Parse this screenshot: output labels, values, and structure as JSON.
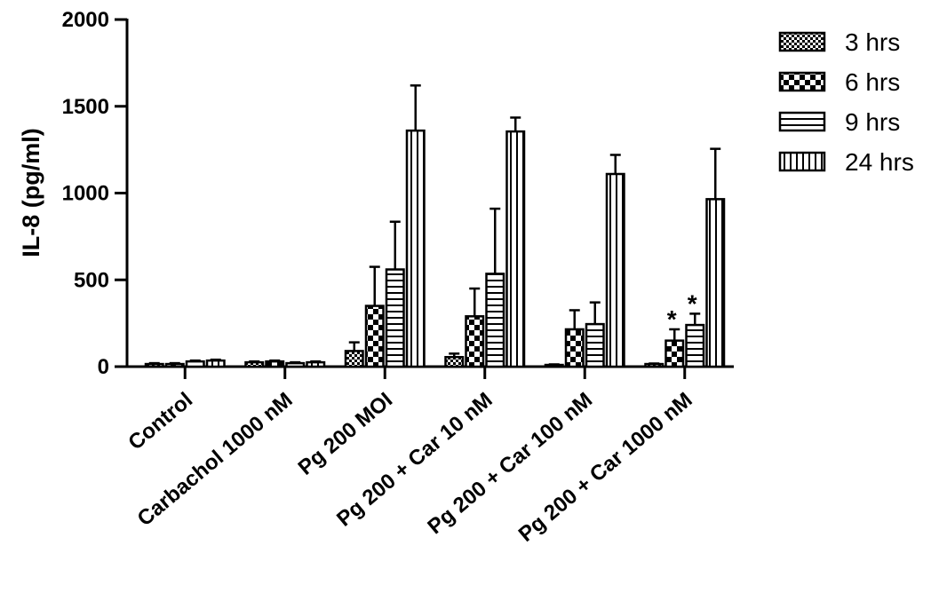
{
  "chart_data": {
    "type": "bar",
    "title": "",
    "xlabel": "",
    "ylabel": "IL-8 (pg/ml)",
    "ylim": [
      0,
      2000
    ],
    "yticks": [
      0,
      500,
      1000,
      1500,
      2000
    ],
    "grid": false,
    "legend_position": "top-right",
    "categories": [
      "Control",
      "Carbachol 1000 nM",
      "Pg 200 MOI",
      "Pg 200 + Car 10 nM",
      "Pg 200 + Car 100 nM",
      "Pg 200 + Car 1000 nM"
    ],
    "series": [
      {
        "name": "3 hrs",
        "pattern": "fine-checker",
        "values": [
          15,
          25,
          90,
          55,
          10,
          15
        ],
        "errors": [
          5,
          5,
          50,
          20,
          3,
          3
        ]
      },
      {
        "name": "6 hrs",
        "pattern": "coarse-checker",
        "values": [
          15,
          30,
          350,
          290,
          215,
          150
        ],
        "errors": [
          5,
          5,
          225,
          160,
          110,
          65
        ]
      },
      {
        "name": "9 hrs",
        "pattern": "horizontal-lines",
        "values": [
          30,
          20,
          560,
          535,
          245,
          240
        ],
        "errors": [
          5,
          5,
          275,
          375,
          125,
          65
        ]
      },
      {
        "name": "24 hrs",
        "pattern": "vertical-lines",
        "values": [
          35,
          25,
          1360,
          1355,
          1110,
          965
        ],
        "errors": [
          5,
          5,
          260,
          80,
          110,
          290
        ]
      }
    ],
    "annotations": [
      {
        "text": "*",
        "category": "Pg 200 + Car 1000 nM",
        "series": "6 hrs"
      },
      {
        "text": "*",
        "category": "Pg 200 + Car 1000 nM",
        "series": "9 hrs"
      }
    ]
  }
}
